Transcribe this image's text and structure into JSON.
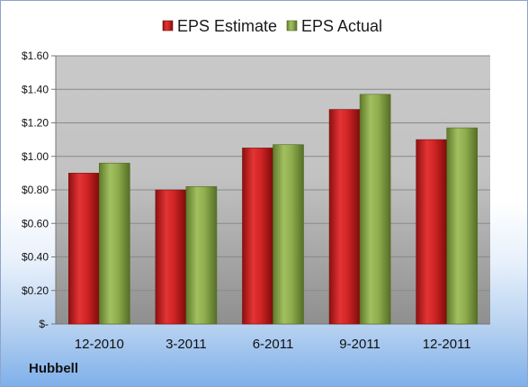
{
  "chart_data": {
    "type": "bar",
    "categories": [
      "12-2010",
      "3-2011",
      "6-2011",
      "9-2011",
      "12-2011"
    ],
    "series": [
      {
        "name": "EPS Estimate",
        "values": [
          0.9,
          0.8,
          1.05,
          1.28,
          1.1
        ]
      },
      {
        "name": "EPS Actual",
        "values": [
          0.96,
          0.82,
          1.07,
          1.37,
          1.17
        ]
      }
    ],
    "y_ticks": [
      "$-",
      "$0.20",
      "$0.40",
      "$0.60",
      "$0.80",
      "$1.00",
      "$1.20",
      "$1.40",
      "$1.60"
    ],
    "ylim": [
      0,
      1.6
    ],
    "grid": true,
    "legend_position": "top",
    "colors": {
      "estimate": "#c81e1e",
      "actual": "#8aa848"
    }
  },
  "company": "Hubbell"
}
